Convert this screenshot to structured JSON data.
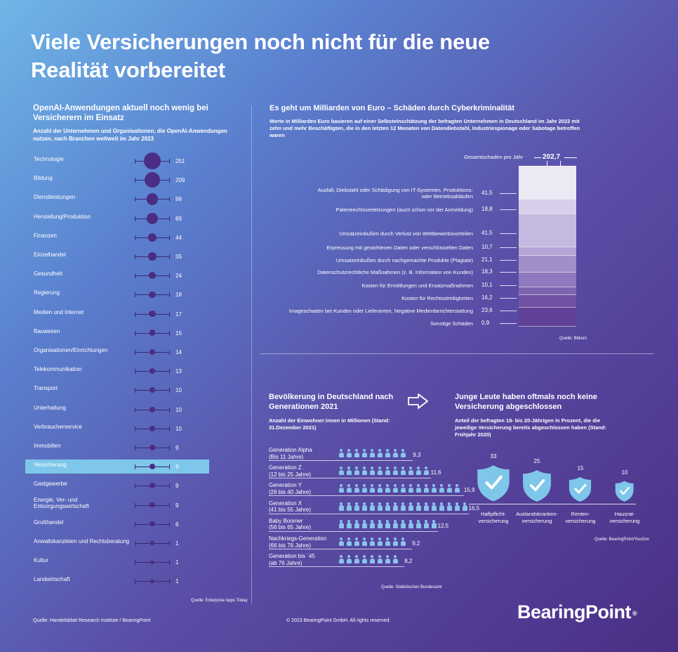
{
  "title": "Viele Versicherungen noch nicht für die neue Realität vorbereitet",
  "footer": {
    "left": "Quelle: Handelsblatt Research Institute / BearingPoint",
    "center": "© 2023 BearingPoint GmbH. All rights reserved.",
    "brand": "BearingPoint",
    "brand_mark": "®"
  },
  "left_panel": {
    "title": "OpenAI-Anwendungen aktuell noch wenig bei Versicherern im Einsatz",
    "subtitle": "Anzahl der Unternehmen und Organisationen, die OpenAI-Anwendungen nutzen, nach Branchen weltweit im Jahr 2023",
    "source": "Quelle: Enterprise Apps Today",
    "highlight": "Versicherung",
    "colors": {
      "dot": "#4a2d84",
      "highlight": "#7ec7ea"
    }
  },
  "cyber": {
    "title": "Es geht um Milliarden von Euro – Schäden durch Cyberkriminalität",
    "subtitle": "Werte in Milliarden Euro basieren auf einer Selbsteinschätzung der befragten Unternehmen in Deutschland im Jahr 2022 mit zehn und mehr Beschäftigten, die in den letzten 12 Monaten von Datendiebstahl, Industriespionage oder Sabotage betroffen waren",
    "total_label": "Gesamtschaden pro Jahr",
    "total_value": "202,7",
    "source": "Quelle: Bitkom"
  },
  "generations": {
    "title": "Bevölkerung in Deutschland nach Generationen 2021",
    "subtitle": "Anzahl der Einwohner:innen in Millionen (Stand: 31.Dezember 2021)",
    "source": "Quelle: Statistisches Bundesamt"
  },
  "insurance": {
    "title": "Junge Leute haben oftmals noch keine Versicherung abgeschlossen",
    "subtitle": "Anteil der befragten 18- bis 20-Jährigen in Prozent, die die jeweilige Versicherung bereits abgeschlossen haben (Stand: Frühjahr 2020)",
    "source": "Quelle: BearingPoint/YouGov"
  },
  "chart_data": [
    {
      "type": "scatter",
      "title": "OpenAI-Anwendungen aktuell noch wenig bei Versicherern im Einsatz",
      "categories": [
        "Technologie",
        "Bildung",
        "Dienstleistungen",
        "Herstellung/Produktion",
        "Finanzen",
        "Einzelhandel",
        "Gesundheit",
        "Regierung",
        "Medien und Internet",
        "Bauwesen",
        "Organisationen/Einrichtungen",
        "Telekommunikation",
        "Transport",
        "Unterhaltung",
        "Verbraucherservice",
        "Immobilien",
        "Versicherung",
        "Gastgewerbe",
        "Energie, Ver- und Entsorgungswirtschaft",
        "Großhandel",
        "Anwaltskanzleien und Rechtsberatung",
        "Kultur",
        "Landwirtschaft"
      ],
      "values": [
        251,
        209,
        98,
        89,
        44,
        35,
        24,
        18,
        17,
        15,
        14,
        13,
        10,
        10,
        10,
        9,
        9,
        9,
        9,
        6,
        1,
        1,
        1
      ]
    },
    {
      "type": "bar",
      "title": "Es geht um Milliarden von Euro – Schäden durch Cyberkriminalität",
      "total": 202.7,
      "categories": [
        "Ausfall, Diebstahl oder Schädigung von IT-Systemen, Produktions- oder Betriebsabläufen",
        "Patentrechtsverletzungen (auch schon vor der Anmeldung)",
        "Umsatzeinbußen durch Verlust von Wettbewerbsvorteilen",
        "Erpressung mit gestohlenen Daten oder verschlüsselten Daten",
        "Umsatzeinbußen durch nachgemachte Produkte (Plagiate)",
        "Datenschutzrechtliche Maßnahmen (z. B. Information von Kunden)",
        "Kosten für Ermittlungen und Ersatzmaßnahmen",
        "Kosten für Rechtsstreitigkeiten",
        "Imageschaden bei Kunden oder Lieferanten, Negative Medienberichterstattung",
        "Sonstige Schäden"
      ],
      "values": [
        41.5,
        18.8,
        41.5,
        10.7,
        21.1,
        18.3,
        10.1,
        16.2,
        23.6,
        0.9
      ],
      "value_labels": [
        "41,5",
        "18,8",
        "41,5",
        "10,7",
        "21,1",
        "18,3",
        "10,1",
        "16,2",
        "23,6",
        "0,9"
      ],
      "colors": [
        "#ece8f4",
        "#d8d0ea",
        "#c6b9e0",
        "#b5a5d6",
        "#a28fca",
        "#9079bd",
        "#7f65b0",
        "#6f52a3",
        "#5f4197",
        "#51338b"
      ]
    },
    {
      "type": "bar",
      "title": "Bevölkerung in Deutschland nach Generationen 2021",
      "categories": [
        [
          "Generation Alpha",
          "(Bis 11 Jahre)"
        ],
        [
          "Generation Z",
          "(12 bis 25 Jahre)"
        ],
        [
          "Generation Y",
          "(26 bis 40 Jahre)"
        ],
        [
          "Generation X",
          "(41 bis 55 Jahre)"
        ],
        [
          "Baby Boomer",
          "(56 bis 65 Jahre)"
        ],
        [
          "Nachkriegs-Generation",
          "(66 bis 76 Jahre)"
        ],
        [
          "Generation bis ´45",
          "(ab 76 Jahre)"
        ]
      ],
      "values": [
        9.3,
        11.6,
        15.9,
        16.5,
        12.5,
        9.2,
        8.2
      ],
      "value_labels": [
        "9,3",
        "11,6",
        "15,9",
        "16,5",
        "12,5",
        "9,2",
        "8,2"
      ]
    },
    {
      "type": "bar",
      "title": "Junge Leute haben oftmals noch keine Versicherung abgeschlossen",
      "categories": [
        [
          "Haftpflicht-",
          "versicherung"
        ],
        [
          "Auslandskranken-",
          "versicherung"
        ],
        [
          "Renten-",
          "versicherung"
        ],
        [
          "Hausrat-",
          "versicherung"
        ]
      ],
      "values": [
        33,
        25,
        15,
        10
      ]
    }
  ]
}
